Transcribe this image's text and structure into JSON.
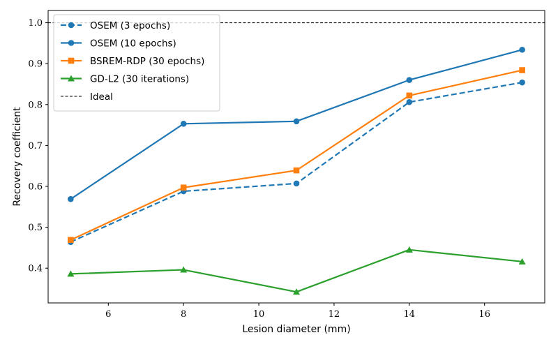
{
  "chart_data": {
    "type": "line",
    "title": "",
    "xlabel": "Lesion diameter (mm)",
    "ylabel": "Recovery coefficient",
    "x": [
      5,
      8,
      11,
      14,
      17
    ],
    "xlim": [
      4.4,
      17.6
    ],
    "ylim": [
      0.315,
      1.03
    ],
    "xticks": [
      6,
      8,
      10,
      12,
      14,
      16
    ],
    "yticks": [
      0.4,
      0.5,
      0.6,
      0.7,
      0.8,
      0.9,
      1.0
    ],
    "ytick_labels": [
      "0.4",
      "0.5",
      "0.6",
      "0.7",
      "0.8",
      "0.9",
      "1.0"
    ],
    "grid": false,
    "legend_position": "top-left",
    "series": [
      {
        "name": "OSEM (3 epochs)",
        "values": [
          0.464,
          0.588,
          0.607,
          0.806,
          0.854
        ],
        "color": "#1f77b4",
        "marker": "circle",
        "linestyle": "dashed"
      },
      {
        "name": "OSEM (10 epochs)",
        "values": [
          0.569,
          0.753,
          0.759,
          0.86,
          0.934
        ],
        "color": "#1f77b4",
        "marker": "circle",
        "linestyle": "solid"
      },
      {
        "name": "BSREM-RDP (30 epochs)",
        "values": [
          0.469,
          0.597,
          0.639,
          0.822,
          0.884
        ],
        "color": "#ff7f0e",
        "marker": "square",
        "linestyle": "solid"
      },
      {
        "name": "GD-L2 (30 iterations)",
        "values": [
          0.386,
          0.396,
          0.342,
          0.445,
          0.416
        ],
        "color": "#2ca02c",
        "marker": "triangle",
        "linestyle": "solid"
      }
    ],
    "reference_line": {
      "name": "Ideal",
      "value": 1.0,
      "color": "#000000",
      "linestyle": "dashed"
    }
  }
}
